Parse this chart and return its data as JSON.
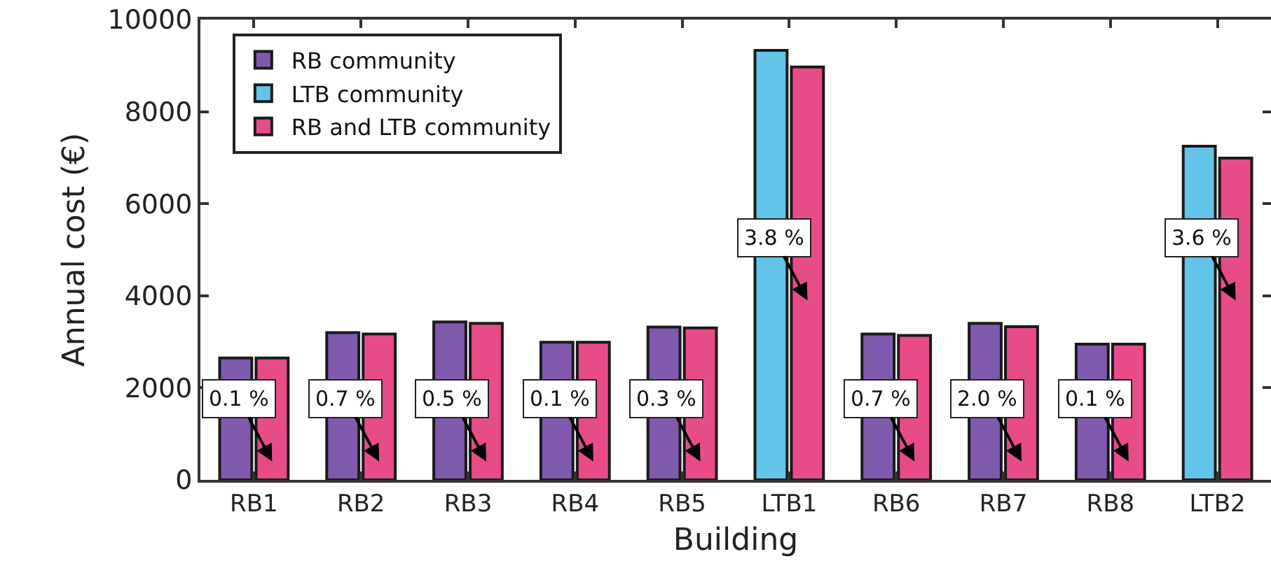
{
  "chart_data": {
    "type": "bar",
    "xlabel": "Building",
    "ylabel": "Annual cost (€)",
    "categories": [
      "RB1",
      "RB2",
      "RB3",
      "RB4",
      "RB5",
      "LTB1",
      "RB6",
      "RB7",
      "RB8",
      "LTB2"
    ],
    "series": [
      {
        "name": "RB community",
        "color": "#7f5aad",
        "values": [
          2650,
          3200,
          3430,
          2990,
          3320,
          null,
          3170,
          3400,
          2950,
          null
        ]
      },
      {
        "name": "LTB community",
        "color": "#62c4e8",
        "values": [
          null,
          null,
          null,
          null,
          null,
          9330,
          null,
          null,
          null,
          7250
        ]
      },
      {
        "name": "RB and LTB community",
        "color": "#e84c88",
        "values": [
          2650,
          3170,
          3400,
          2990,
          3300,
          8970,
          3140,
          3330,
          2950,
          6990
        ]
      }
    ],
    "ylim": [
      0,
      10000
    ],
    "yticks": [
      0,
      2000,
      4000,
      6000,
      8000,
      10000
    ],
    "grid": false,
    "legend": "top left",
    "annotations": [
      {
        "text": "0.1 %",
        "x": "RB1",
        "y": 400
      },
      {
        "text": "0.7 %",
        "x": "RB2",
        "y": 400
      },
      {
        "text": "0.5 %",
        "x": "RB3",
        "y": 400
      },
      {
        "text": "0.1 %",
        "x": "RB4",
        "y": 400
      },
      {
        "text": "0.3 %",
        "x": "RB5",
        "y": 400
      },
      {
        "text": "3.8 %",
        "x": "LTB1",
        "y": 3900
      },
      {
        "text": "0.7 %",
        "x": "RB6",
        "y": 400
      },
      {
        "text": "2.0 %",
        "x": "RB7",
        "y": 400
      },
      {
        "text": "0.1 %",
        "x": "RB8",
        "y": 400
      },
      {
        "text": "3.6 %",
        "x": "LTB2",
        "y": 3900
      }
    ]
  }
}
